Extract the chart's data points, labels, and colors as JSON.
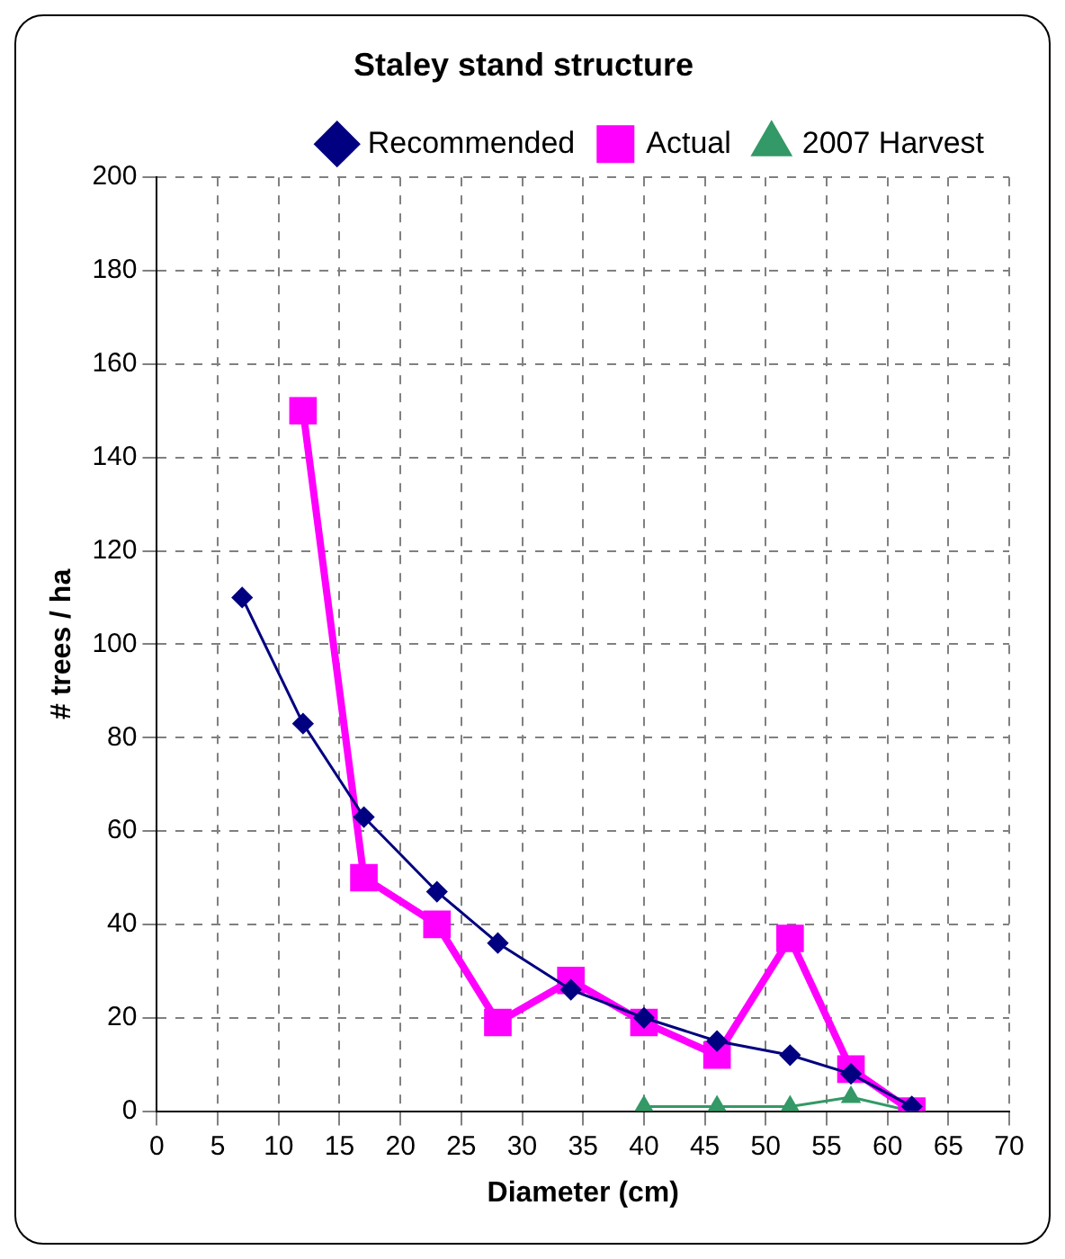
{
  "chart_data": {
    "type": "line",
    "title": "Staley stand structure",
    "xlabel": "Diameter (cm)",
    "ylabel": "# trees / ha",
    "xlim": [
      0,
      70
    ],
    "xticks": [
      0,
      5,
      10,
      15,
      20,
      25,
      30,
      35,
      40,
      45,
      50,
      55,
      60,
      65,
      70
    ],
    "ylim": [
      0,
      200
    ],
    "yticks": [
      0,
      20,
      40,
      60,
      80,
      100,
      120,
      140,
      160,
      180,
      200
    ],
    "grid": true,
    "legend": "top right",
    "line_style": "solid",
    "series": [
      {
        "name": "Recommended",
        "color": "#000080",
        "marker": "diamond",
        "x": [
          7,
          12,
          17,
          23,
          28,
          34,
          40,
          46,
          52,
          57,
          62
        ],
        "values": [
          110,
          83,
          63,
          47,
          36,
          26,
          20,
          15,
          12,
          8,
          1
        ]
      },
      {
        "name": "Actual",
        "color": "#ff00ff",
        "marker": "square",
        "x": [
          12,
          17,
          23,
          28,
          34,
          40,
          46,
          52,
          57,
          62
        ],
        "values": [
          150,
          50,
          40,
          19,
          28,
          19,
          12,
          37,
          9,
          0
        ]
      },
      {
        "name": "2007 Harvest",
        "color": "#339966",
        "marker": "triangle",
        "x": [
          40,
          46,
          52,
          57,
          62
        ],
        "values": [
          1,
          1,
          1,
          3,
          0
        ]
      }
    ]
  }
}
